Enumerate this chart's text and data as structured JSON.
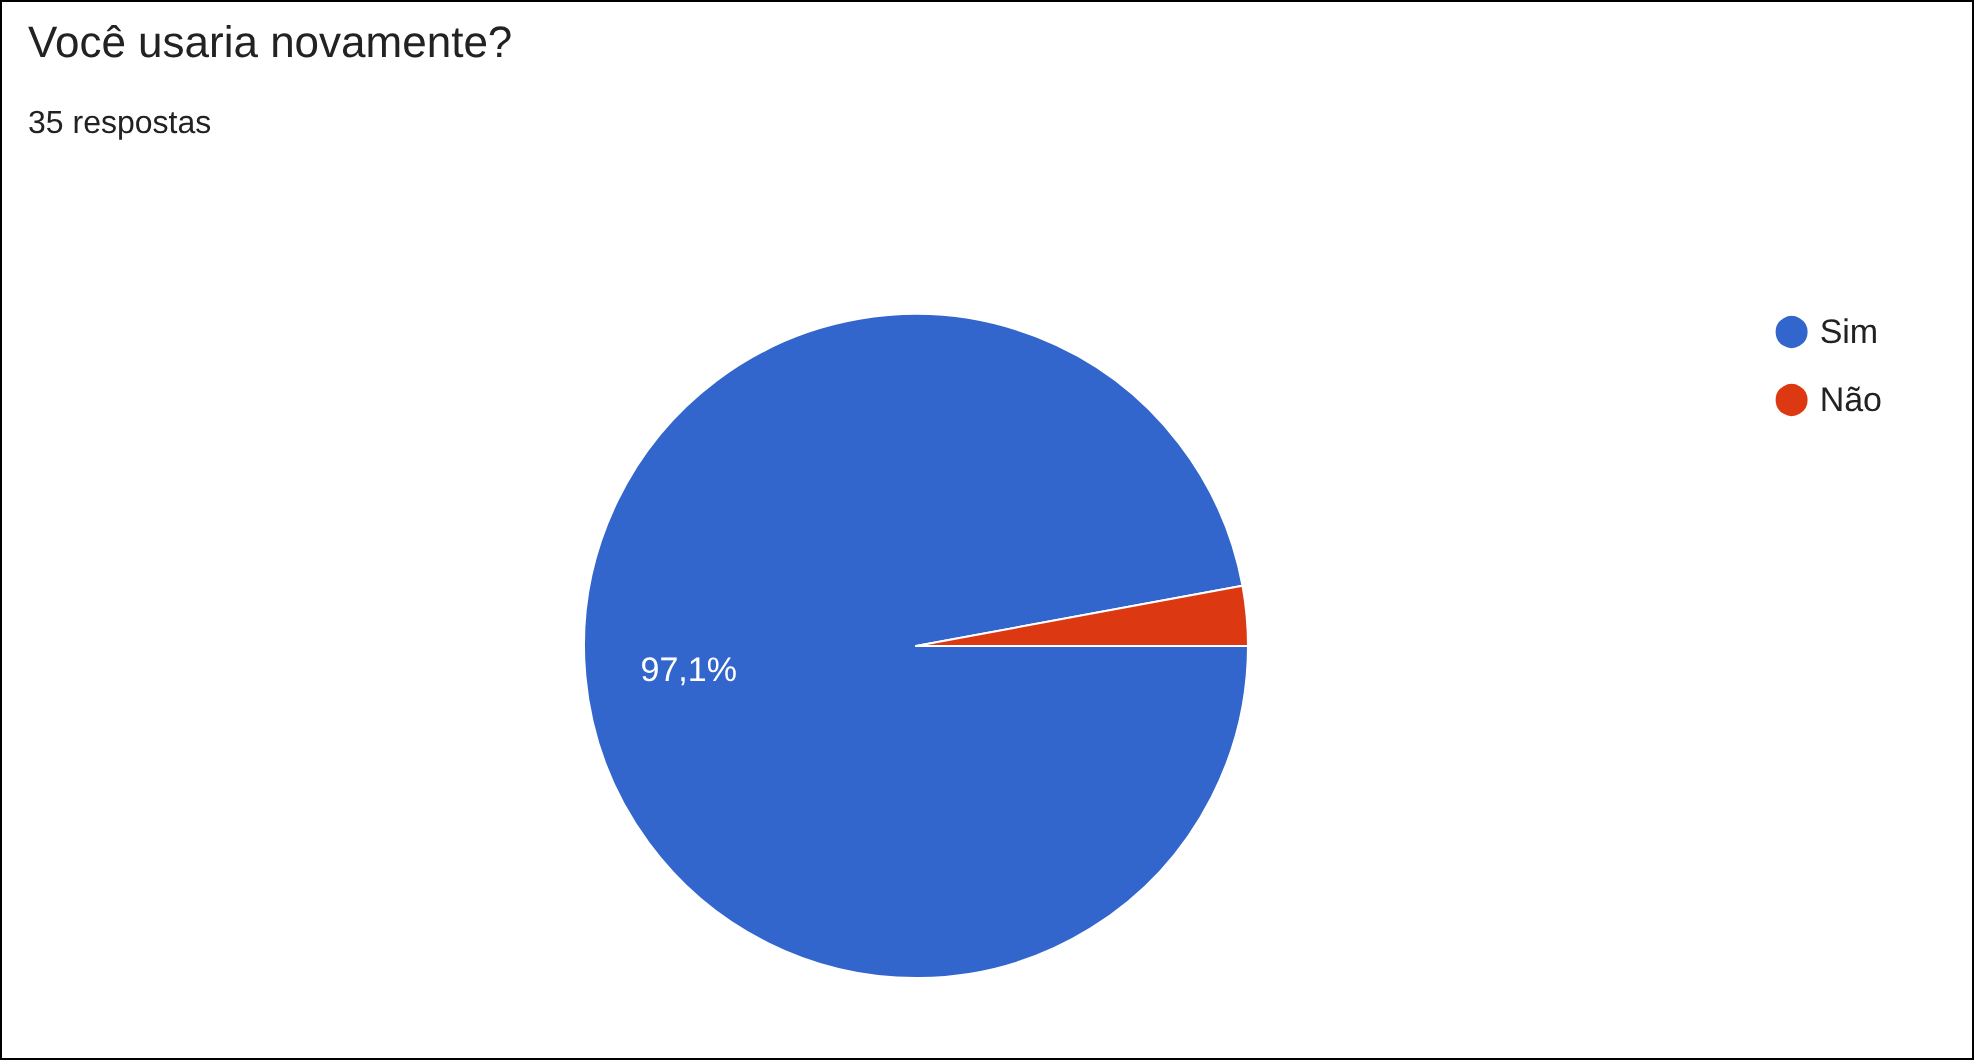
{
  "chart_data": {
    "type": "pie",
    "title": "Você usaria novamente?",
    "subtitle": "35 respostas",
    "categories": [
      "Sim",
      "Não"
    ],
    "values": [
      97.1,
      2.9
    ],
    "colors": [
      "#3366cc",
      "#dc3912"
    ],
    "value_labels": [
      "97,1%",
      null
    ],
    "legend": "top right"
  }
}
